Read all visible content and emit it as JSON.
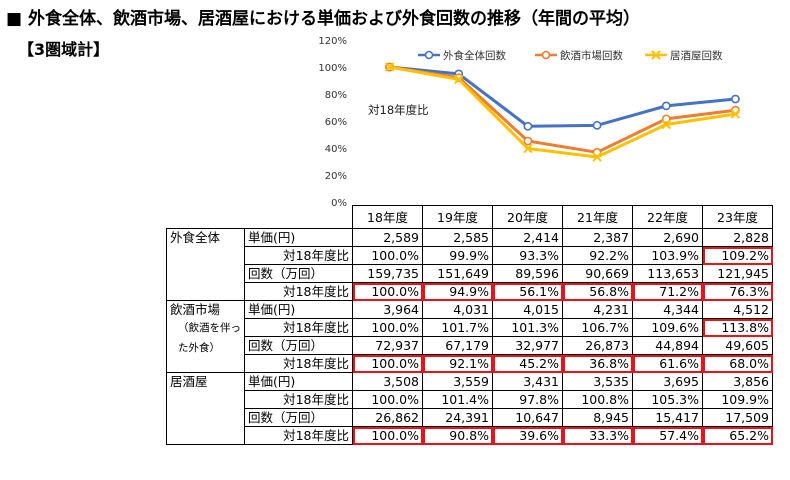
{
  "page": {
    "title": "■ 外食全体、飲酒市場、居酒屋における単価および外食回数の推移（年間の平均）",
    "subtitle": "【3圏域計】"
  },
  "chart_data": {
    "type": "line",
    "title": "",
    "annotation": "対18年度比",
    "categories": [
      "18年度",
      "19年度",
      "20年度",
      "21年度",
      "22年度",
      "23年度"
    ],
    "ylim": [
      0,
      120
    ],
    "yticks": [
      "0%",
      "20%",
      "40%",
      "60%",
      "80%",
      "100%",
      "120%"
    ],
    "legend_position": "top",
    "series": [
      {
        "name": "外食全体回数",
        "color": "#4472C4",
        "marker": "circle",
        "values": [
          100.0,
          94.9,
          56.1,
          56.8,
          71.2,
          76.3
        ]
      },
      {
        "name": "飲酒市場回数",
        "color": "#ED7D31",
        "marker": "circle",
        "values": [
          100.0,
          92.1,
          45.2,
          36.8,
          61.6,
          68.0
        ]
      },
      {
        "name": "居酒屋回数",
        "color": "#FFC000",
        "marker": "x",
        "values": [
          100.0,
          90.8,
          39.6,
          33.3,
          57.4,
          65.2
        ]
      }
    ]
  },
  "table": {
    "years": [
      "18年度",
      "19年度",
      "20年度",
      "21年度",
      "22年度",
      "23年度"
    ],
    "ratio_label": "対18年度比",
    "groups": [
      {
        "name": "外食全体",
        "sub": [],
        "price_label": "単価(円)",
        "price": [
          "2,589",
          "2,585",
          "2,414",
          "2,387",
          "2,690",
          "2,828"
        ],
        "price_ratio": [
          "100.0%",
          "99.9%",
          "93.3%",
          "92.2%",
          "103.9%",
          "109.2%"
        ],
        "count_label": "回数（万回）",
        "count": [
          "159,735",
          "151,649",
          "89,596",
          "90,669",
          "113,653",
          "121,945"
        ],
        "count_ratio": [
          "100.0%",
          "94.9%",
          "56.1%",
          "56.8%",
          "71.2%",
          "76.3%"
        ]
      },
      {
        "name": "飲酒市場",
        "sub": [
          "（飲酒を伴っ",
          "た外食）"
        ],
        "price_label": "単価(円)",
        "price": [
          "3,964",
          "4,031",
          "4,015",
          "4,231",
          "4,344",
          "4,512"
        ],
        "price_ratio": [
          "100.0%",
          "101.7%",
          "101.3%",
          "106.7%",
          "109.6%",
          "113.8%"
        ],
        "count_label": "回数（万回）",
        "count": [
          "72,937",
          "67,179",
          "32,977",
          "26,873",
          "44,894",
          "49,605"
        ],
        "count_ratio": [
          "100.0%",
          "92.1%",
          "45.2%",
          "36.8%",
          "61.6%",
          "68.0%"
        ]
      },
      {
        "name": "居酒屋",
        "sub": [],
        "price_label": "単価(円)",
        "price": [
          "3,508",
          "3,559",
          "3,431",
          "3,535",
          "3,695",
          "3,856"
        ],
        "price_ratio": [
          "100.0%",
          "101.4%",
          "97.8%",
          "100.8%",
          "105.3%",
          "109.9%"
        ],
        "count_label": "回数（万回）",
        "count": [
          "26,862",
          "24,391",
          "10,647",
          "8,945",
          "15,417",
          "17,509"
        ],
        "count_ratio": [
          "100.0%",
          "90.8%",
          "39.6%",
          "33.3%",
          "57.4%",
          "65.2%"
        ]
      }
    ]
  }
}
